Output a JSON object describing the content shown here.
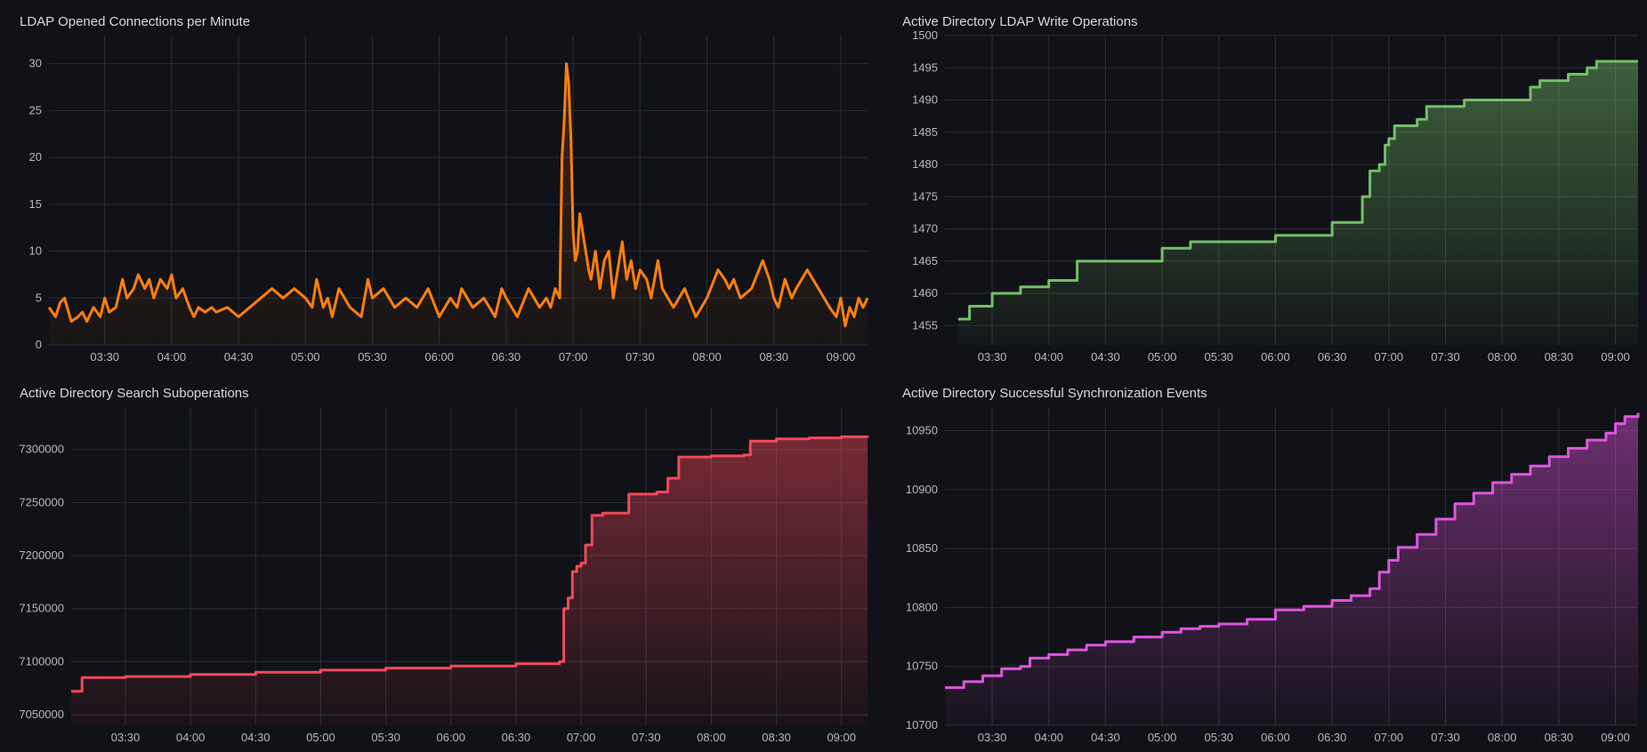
{
  "panels": [
    {
      "title": "LDAP Opened Connections per Minute"
    },
    {
      "title": "Active Directory LDAP Write Operations"
    },
    {
      "title": "Active Directory Search Suboperations"
    },
    {
      "title": "Active Directory Successful Synchronization Events"
    }
  ],
  "chart_data": [
    {
      "type": "line",
      "title": "LDAP Opened Connections per Minute",
      "color": "#ff7f0e",
      "x_ticks": [
        "03:30",
        "04:00",
        "04:30",
        "05:00",
        "05:30",
        "06:00",
        "06:30",
        "07:00",
        "07:30",
        "08:00",
        "08:30",
        "09:00"
      ],
      "x_range": [
        "03:05",
        "09:12"
      ],
      "y_ticks": [
        0,
        5,
        10,
        15,
        20,
        25,
        30
      ],
      "ylim": [
        0,
        33
      ],
      "series": [
        {
          "x": [
            "03:05",
            "03:08",
            "03:10",
            "03:12",
            "03:15",
            "03:18",
            "03:20",
            "03:22",
            "03:25",
            "03:28",
            "03:30",
            "03:32",
            "03:35",
            "03:38",
            "03:40",
            "03:43",
            "03:45",
            "03:48",
            "03:50",
            "03:52",
            "03:55",
            "03:58",
            "04:00",
            "04:02",
            "04:05",
            "04:08",
            "04:10",
            "04:12",
            "04:15",
            "04:18",
            "04:20",
            "04:25",
            "04:30",
            "04:35",
            "04:40",
            "04:45",
            "04:50",
            "04:55",
            "05:00",
            "05:03",
            "05:05",
            "05:08",
            "05:10",
            "05:12",
            "05:15",
            "05:20",
            "05:25",
            "05:28",
            "05:30",
            "05:35",
            "05:40",
            "05:45",
            "05:50",
            "05:55",
            "06:00",
            "06:05",
            "06:08",
            "06:10",
            "06:15",
            "06:20",
            "06:25",
            "06:28",
            "06:30",
            "06:35",
            "06:40",
            "06:45",
            "06:48",
            "06:50",
            "06:52",
            "06:54",
            "06:55",
            "06:56",
            "06:57",
            "06:58",
            "06:59",
            "07:00",
            "07:01",
            "07:02",
            "07:03",
            "07:05",
            "07:07",
            "07:08",
            "07:10",
            "07:12",
            "07:14",
            "07:16",
            "07:18",
            "07:20",
            "07:22",
            "07:24",
            "07:26",
            "07:28",
            "07:30",
            "07:33",
            "07:35",
            "07:38",
            "07:40",
            "07:45",
            "07:50",
            "07:55",
            "08:00",
            "08:05",
            "08:08",
            "08:10",
            "08:12",
            "08:15",
            "08:20",
            "08:25",
            "08:28",
            "08:30",
            "08:32",
            "08:35",
            "08:38",
            "08:40",
            "08:45",
            "08:50",
            "08:55",
            "08:58",
            "09:00",
            "09:02",
            "09:04",
            "09:06",
            "09:08",
            "09:10",
            "09:12"
          ],
          "y": [
            4,
            3,
            4.5,
            5,
            2.5,
            3,
            3.5,
            2.5,
            4,
            3,
            5,
            3.5,
            4,
            7,
            5,
            6,
            7.5,
            6,
            7,
            5,
            7,
            6,
            7.5,
            5,
            6,
            4,
            3,
            4,
            3.5,
            4,
            3.5,
            4,
            3,
            4,
            5,
            6,
            5,
            6,
            5,
            4,
            7,
            4,
            5,
            3,
            6,
            4,
            3,
            7,
            5,
            6,
            4,
            5,
            4,
            6,
            3,
            5,
            4,
            6,
            4,
            5,
            3,
            6,
            5,
            3,
            6,
            4,
            5,
            4,
            6,
            5,
            20,
            24,
            30,
            28,
            22,
            12,
            9,
            10,
            14,
            11,
            8,
            7,
            10,
            6,
            9,
            10,
            5,
            8,
            11,
            7,
            9,
            6,
            8,
            7,
            5,
            9,
            6,
            4,
            6,
            3,
            5,
            8,
            7,
            6,
            7,
            5,
            6,
            9,
            7,
            5,
            4,
            7,
            5,
            6,
            8,
            6,
            4,
            3,
            5,
            2,
            4,
            3,
            5,
            4,
            5
          ]
        }
      ]
    },
    {
      "type": "area",
      "title": "Active Directory LDAP Write Operations",
      "color": "#73bf69",
      "x_ticks": [
        "03:30",
        "04:00",
        "04:30",
        "05:00",
        "05:30",
        "06:00",
        "06:30",
        "07:00",
        "07:30",
        "08:00",
        "08:30",
        "09:00"
      ],
      "x_range": [
        "03:05",
        "09:12"
      ],
      "y_ticks": [
        1455,
        1460,
        1465,
        1470,
        1475,
        1480,
        1485,
        1490,
        1495,
        1500
      ],
      "ylim": [
        1452,
        1500
      ],
      "series": [
        {
          "x": [
            "03:12",
            "03:18",
            "03:25",
            "03:30",
            "03:45",
            "04:00",
            "04:15",
            "04:30",
            "05:00",
            "05:15",
            "05:30",
            "06:00",
            "06:20",
            "06:30",
            "06:40",
            "06:46",
            "06:50",
            "06:55",
            "06:58",
            "07:00",
            "07:03",
            "07:05",
            "07:10",
            "07:15",
            "07:20",
            "07:25",
            "07:30",
            "07:40",
            "07:55",
            "08:00",
            "08:10",
            "08:15",
            "08:20",
            "08:25",
            "08:30",
            "08:35",
            "08:40",
            "08:45",
            "08:50",
            "09:00",
            "09:05",
            "09:12"
          ],
          "y": [
            1456,
            1458,
            1458,
            1460,
            1461,
            1462,
            1465,
            1465,
            1467,
            1468,
            1468,
            1469,
            1469,
            1471,
            1471,
            1475,
            1479,
            1480,
            1483,
            1484,
            1486,
            1486,
            1486,
            1487,
            1489,
            1489,
            1489,
            1490,
            1490,
            1490,
            1490,
            1492,
            1493,
            1493,
            1493,
            1494,
            1494,
            1495,
            1496,
            1496,
            1496,
            1496
          ]
        }
      ]
    },
    {
      "type": "area",
      "title": "Active Directory Search Suboperations",
      "color": "#f2495c",
      "x_ticks": [
        "03:30",
        "04:00",
        "04:30",
        "05:00",
        "05:30",
        "06:00",
        "06:30",
        "07:00",
        "07:30",
        "08:00",
        "08:30",
        "09:00"
      ],
      "x_range": [
        "03:05",
        "09:12"
      ],
      "y_ticks": [
        7050000,
        7100000,
        7150000,
        7200000,
        7250000,
        7300000
      ],
      "ylim": [
        7040000,
        7340000
      ],
      "series": [
        {
          "x": [
            "03:05",
            "03:08",
            "03:10",
            "03:30",
            "04:00",
            "04:30",
            "05:00",
            "05:30",
            "06:00",
            "06:30",
            "06:50",
            "06:52",
            "06:54",
            "06:56",
            "06:58",
            "07:00",
            "07:02",
            "07:05",
            "07:10",
            "07:20",
            "07:22",
            "07:30",
            "07:35",
            "07:40",
            "07:45",
            "08:00",
            "08:15",
            "08:18",
            "08:30",
            "08:45",
            "09:00",
            "09:12"
          ],
          "y": [
            7072000,
            7072000,
            7085000,
            7086000,
            7088000,
            7090000,
            7092000,
            7094000,
            7096000,
            7098000,
            7100000,
            7150000,
            7160000,
            7185000,
            7190000,
            7193000,
            7210000,
            7238000,
            7240000,
            7240000,
            7258000,
            7258000,
            7260000,
            7273000,
            7293000,
            7294000,
            7295000,
            7308000,
            7310000,
            7311000,
            7312000,
            7313000
          ]
        }
      ]
    },
    {
      "type": "area",
      "title": "Active Directory Successful Synchronization Events",
      "color": "#e055e0",
      "x_ticks": [
        "03:30",
        "04:00",
        "04:30",
        "05:00",
        "05:30",
        "06:00",
        "06:30",
        "07:00",
        "07:30",
        "08:00",
        "08:30",
        "09:00"
      ],
      "x_range": [
        "03:05",
        "09:12"
      ],
      "y_ticks": [
        10700,
        10750,
        10800,
        10850,
        10900,
        10950
      ],
      "ylim": [
        10700,
        10970
      ],
      "series": [
        {
          "x": [
            "03:05",
            "03:15",
            "03:25",
            "03:35",
            "03:45",
            "03:50",
            "04:00",
            "04:10",
            "04:20",
            "04:30",
            "04:45",
            "05:00",
            "05:10",
            "05:20",
            "05:30",
            "05:45",
            "06:00",
            "06:15",
            "06:30",
            "06:40",
            "06:50",
            "06:55",
            "07:00",
            "07:05",
            "07:15",
            "07:25",
            "07:35",
            "07:45",
            "07:55",
            "08:05",
            "08:15",
            "08:25",
            "08:35",
            "08:45",
            "08:55",
            "09:00",
            "09:05",
            "09:12"
          ],
          "y": [
            10732,
            10737,
            10742,
            10748,
            10750,
            10757,
            10760,
            10764,
            10768,
            10771,
            10775,
            10779,
            10782,
            10784,
            10786,
            10790,
            10798,
            10801,
            10806,
            10810,
            10816,
            10830,
            10840,
            10851,
            10862,
            10875,
            10888,
            10897,
            10906,
            10913,
            10920,
            10928,
            10935,
            10942,
            10948,
            10956,
            10962,
            10965
          ]
        }
      ]
    }
  ]
}
